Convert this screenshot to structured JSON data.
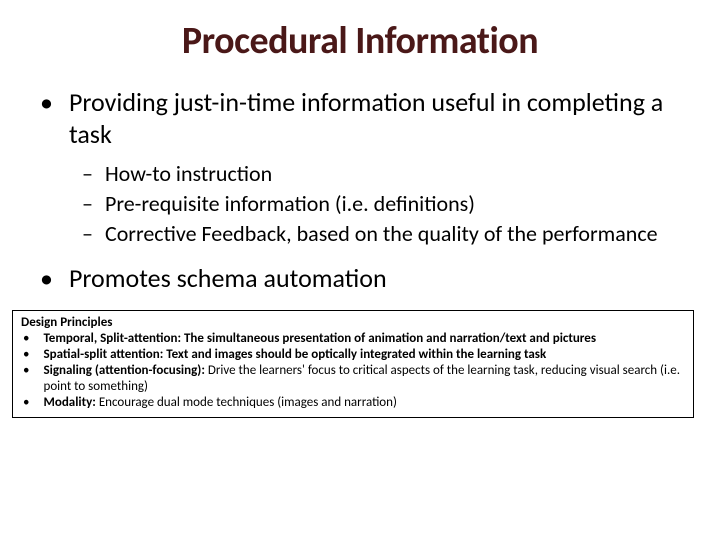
{
  "colors": {
    "title": "#4a1818",
    "body": "#000000",
    "bg": "#ffffff",
    "border": "#000000"
  },
  "title": "Procedural Information",
  "bullets": [
    {
      "text": "Providing just-in-time information useful in completing a task",
      "sub": [
        "How-to instruction",
        "Pre-requisite information (i.e. definitions)",
        "Corrective Feedback, based on the quality of the performance"
      ]
    },
    {
      "text": "Promotes schema automation",
      "sub": []
    }
  ],
  "principles": {
    "heading": "Design Principles",
    "items": [
      {
        "bold": "Temporal, Split-attention: The simultaneous presentation of animation and narration/text and pictures",
        "rest": ""
      },
      {
        "bold": "Spatial-split attention: Text and images should be optically integrated within the learning task",
        "rest": ""
      },
      {
        "bold": "Signaling (attention-focusing):",
        "rest": " Drive the learners' focus to critical aspects of the learning task, reducing visual search (i.e. point to something)"
      },
      {
        "bold": "Modality:",
        "rest": " Encourage dual mode techniques (images and narration)"
      }
    ]
  }
}
